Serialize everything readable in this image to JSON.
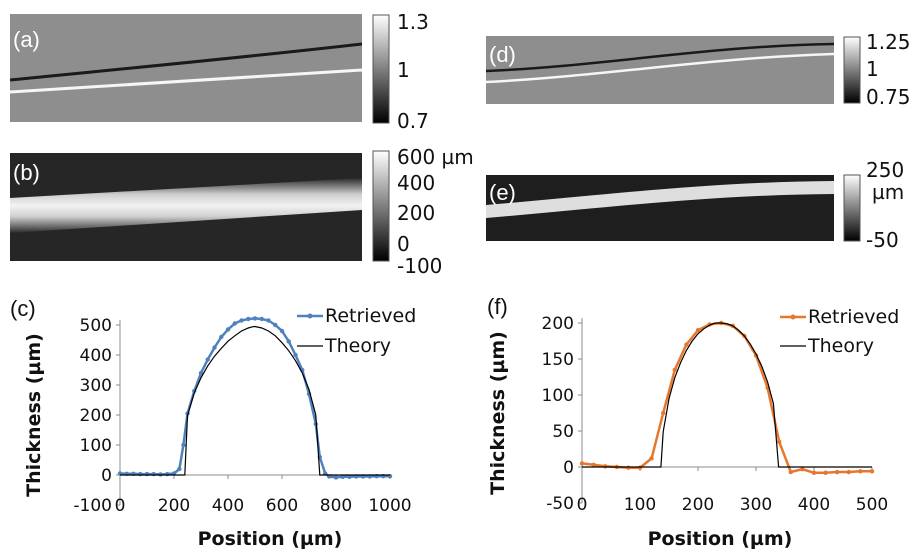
{
  "panels": {
    "a": {
      "letter": "(a)",
      "colorbar_ticks": [
        "1.3",
        "1",
        "0.7"
      ]
    },
    "b": {
      "letter": "(b)",
      "colorbar_ticks": [
        "600 µm",
        "400",
        "200",
        "0",
        "-100"
      ]
    },
    "d": {
      "letter": "(d)",
      "colorbar_ticks": [
        "1.25",
        "1",
        "0.75"
      ]
    },
    "e": {
      "letter": "(e)",
      "colorbar_ticks": [
        "250",
        "µm",
        "-50"
      ]
    },
    "c": {
      "letter": "(c)"
    },
    "f": {
      "letter": "(f)"
    }
  },
  "colors": {
    "retrieved_c": "#4f81bd",
    "retrieved_f": "#e8772e",
    "theory": "#000000"
  },
  "chart_data": [
    {
      "id": "c",
      "type": "line",
      "title": "",
      "xlabel": "Position (µm)",
      "ylabel": "Thickness (µm)",
      "xlim": [
        0,
        1000
      ],
      "ylim": [
        -100,
        500
      ],
      "xticks": [
        "0",
        "200",
        "400",
        "600",
        "800",
        "1000"
      ],
      "yticks": [
        "-100",
        "0",
        "100",
        "200",
        "300",
        "400",
        "500"
      ],
      "legend": "top-right",
      "series": [
        {
          "name": "Retrieved",
          "color": "#4f81bd",
          "marker": true,
          "x": [
            0,
            25,
            50,
            75,
            100,
            125,
            150,
            175,
            200,
            220,
            235,
            250,
            275,
            300,
            325,
            350,
            375,
            400,
            425,
            450,
            475,
            500,
            525,
            550,
            575,
            600,
            625,
            650,
            675,
            700,
            725,
            740,
            760,
            775,
            800,
            825,
            850,
            875,
            900,
            925,
            950,
            975,
            1000
          ],
          "y": [
            5,
            4,
            4,
            3,
            3,
            3,
            2,
            3,
            5,
            20,
            100,
            205,
            280,
            340,
            385,
            425,
            460,
            485,
            505,
            515,
            520,
            522,
            520,
            515,
            500,
            480,
            445,
            400,
            350,
            270,
            170,
            60,
            5,
            -5,
            -8,
            -6,
            -6,
            -5,
            -5,
            -5,
            -4,
            -4,
            -4
          ]
        },
        {
          "name": "Theory",
          "color": "#000000",
          "marker": false,
          "x": [
            0,
            240,
            240,
            250,
            275,
            300,
            325,
            350,
            375,
            400,
            425,
            450,
            475,
            490,
            500,
            525,
            550,
            575,
            600,
            625,
            650,
            675,
            700,
            725,
            740,
            740,
            1000
          ],
          "y": [
            0,
            0,
            0,
            198,
            274,
            324,
            364,
            396,
            422,
            446,
            464,
            480,
            490,
            494,
            495,
            490,
            480,
            464,
            441,
            414,
            381,
            340,
            285,
            200,
            0,
            0,
            0
          ]
        }
      ]
    },
    {
      "id": "f",
      "type": "line",
      "title": "",
      "xlabel": "Position (µm)",
      "ylabel": "Thickness (µm)",
      "xlim": [
        0,
        500
      ],
      "ylim": [
        -50,
        200
      ],
      "xticks": [
        "0",
        "100",
        "200",
        "300",
        "400",
        "500"
      ],
      "yticks": [
        "-50",
        "0",
        "50",
        "100",
        "150",
        "200"
      ],
      "legend": "top-right",
      "series": [
        {
          "name": "Retrieved",
          "color": "#e8772e",
          "marker": true,
          "x": [
            0,
            20,
            40,
            60,
            80,
            100,
            120,
            140,
            160,
            180,
            200,
            220,
            240,
            260,
            280,
            300,
            320,
            340,
            360,
            380,
            400,
            420,
            440,
            460,
            480,
            500
          ],
          "y": [
            5,
            3,
            1,
            0,
            -1,
            -1,
            12,
            75,
            135,
            170,
            190,
            198,
            200,
            196,
            182,
            155,
            110,
            35,
            -7,
            -3,
            -8,
            -8,
            -7,
            -7,
            -6,
            -6
          ]
        },
        {
          "name": "Theory",
          "color": "#000000",
          "marker": false,
          "x": [
            0,
            136,
            136,
            140,
            150,
            160,
            170,
            180,
            190,
            200,
            210,
            220,
            230,
            240,
            250,
            260,
            270,
            280,
            290,
            300,
            310,
            320,
            330,
            339,
            339,
            500
          ],
          "y": [
            0,
            0,
            0,
            49,
            95,
            124,
            145,
            162,
            175,
            185,
            192,
            197,
            200,
            200,
            199,
            196,
            190,
            182,
            171,
            157,
            140,
            118,
            88,
            0,
            0,
            0
          ]
        }
      ]
    }
  ]
}
